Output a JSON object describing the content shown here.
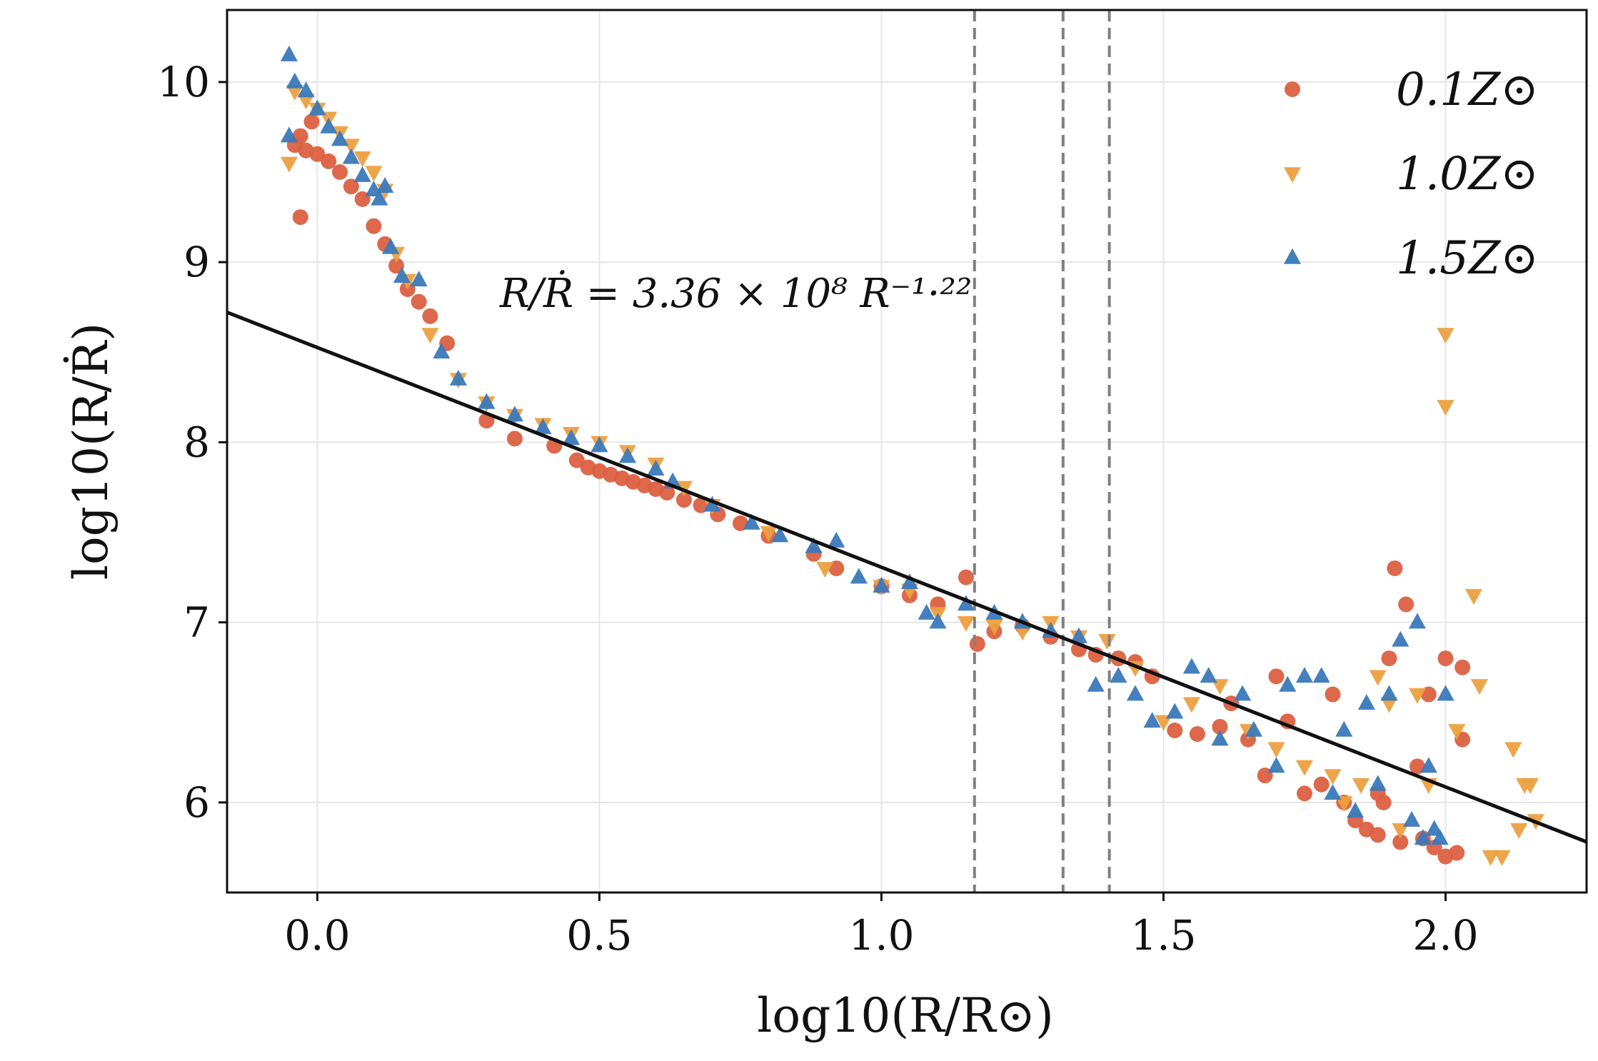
{
  "chart_data": {
    "type": "scatter",
    "title": "",
    "xlabel": "log10(R/R⊙)",
    "ylabel": "log10(R/Ṙ)",
    "xlim": [
      -0.16,
      2.25
    ],
    "ylim": [
      5.5,
      10.4
    ],
    "xticks": [
      "0.0",
      "0.5",
      "1.0",
      "1.5",
      "2.0"
    ],
    "yticks": [
      "6",
      "7",
      "8",
      "9",
      "10"
    ],
    "xtick_values": [
      0.0,
      0.5,
      1.0,
      1.5,
      2.0
    ],
    "ytick_values": [
      6,
      7,
      8,
      9,
      10
    ],
    "grid": true,
    "legend_position": "top-right",
    "annotation": "R/Ṙ = 3.36 × 10⁸ R⁻¹·²²",
    "fit_line": {
      "label": "R/Ṙ = 3.36 × 10^8 R^-1.22",
      "intercept": 8.526,
      "slope": -1.22,
      "color": "#111111"
    },
    "vlines": [
      1.165,
      1.322,
      1.404
    ],
    "series": [
      {
        "name": "0.1Z⊙",
        "marker": "circle",
        "color": "#dc6041",
        "points": [
          [
            -0.03,
            9.25
          ],
          [
            -0.04,
            9.65
          ],
          [
            -0.03,
            9.7
          ],
          [
            -0.02,
            9.62
          ],
          [
            -0.01,
            9.78
          ],
          [
            0.0,
            9.6
          ],
          [
            0.02,
            9.56
          ],
          [
            0.04,
            9.5
          ],
          [
            0.06,
            9.42
          ],
          [
            0.08,
            9.35
          ],
          [
            0.1,
            9.2
          ],
          [
            0.12,
            9.1
          ],
          [
            0.14,
            8.98
          ],
          [
            0.16,
            8.85
          ],
          [
            0.18,
            8.78
          ],
          [
            0.2,
            8.7
          ],
          [
            0.23,
            8.55
          ],
          [
            0.3,
            8.12
          ],
          [
            0.35,
            8.02
          ],
          [
            0.42,
            7.98
          ],
          [
            0.46,
            7.9
          ],
          [
            0.48,
            7.86
          ],
          [
            0.5,
            7.84
          ],
          [
            0.52,
            7.82
          ],
          [
            0.54,
            7.8
          ],
          [
            0.56,
            7.78
          ],
          [
            0.58,
            7.76
          ],
          [
            0.6,
            7.74
          ],
          [
            0.62,
            7.72
          ],
          [
            0.65,
            7.68
          ],
          [
            0.68,
            7.65
          ],
          [
            0.71,
            7.6
          ],
          [
            0.75,
            7.55
          ],
          [
            0.8,
            7.48
          ],
          [
            0.88,
            7.38
          ],
          [
            0.92,
            7.3
          ],
          [
            1.0,
            7.2
          ],
          [
            1.05,
            7.15
          ],
          [
            1.1,
            7.1
          ],
          [
            1.15,
            7.25
          ],
          [
            1.17,
            6.88
          ],
          [
            1.2,
            6.95
          ],
          [
            1.25,
            6.98
          ],
          [
            1.3,
            6.92
          ],
          [
            1.35,
            6.85
          ],
          [
            1.38,
            6.82
          ],
          [
            1.42,
            6.8
          ],
          [
            1.45,
            6.78
          ],
          [
            1.48,
            6.7
          ],
          [
            1.52,
            6.4
          ],
          [
            1.56,
            6.38
          ],
          [
            1.6,
            6.42
          ],
          [
            1.62,
            6.55
          ],
          [
            1.65,
            6.35
          ],
          [
            1.68,
            6.15
          ],
          [
            1.7,
            6.7
          ],
          [
            1.72,
            6.45
          ],
          [
            1.75,
            6.05
          ],
          [
            1.78,
            6.1
          ],
          [
            1.8,
            6.6
          ],
          [
            1.82,
            6.0
          ],
          [
            1.84,
            5.9
          ],
          [
            1.86,
            5.85
          ],
          [
            1.88,
            6.05
          ],
          [
            1.89,
            6.0
          ],
          [
            1.9,
            6.8
          ],
          [
            1.91,
            7.3
          ],
          [
            1.93,
            7.1
          ],
          [
            1.95,
            6.2
          ],
          [
            1.96,
            5.8
          ],
          [
            1.97,
            6.6
          ],
          [
            1.98,
            5.75
          ],
          [
            2.0,
            6.8
          ],
          [
            2.0,
            5.7
          ],
          [
            2.03,
            6.75
          ],
          [
            2.03,
            6.35
          ],
          [
            2.02,
            5.72
          ],
          [
            1.92,
            5.78
          ],
          [
            1.88,
            5.82
          ]
        ]
      },
      {
        "name": "1.0Z⊙",
        "marker": "triangle-down",
        "color": "#eda040",
        "points": [
          [
            -0.05,
            9.55
          ],
          [
            -0.04,
            9.95
          ],
          [
            -0.02,
            9.9
          ],
          [
            0.0,
            9.85
          ],
          [
            0.02,
            9.8
          ],
          [
            0.04,
            9.72
          ],
          [
            0.06,
            9.65
          ],
          [
            0.08,
            9.58
          ],
          [
            0.1,
            9.5
          ],
          [
            0.12,
            9.4
          ],
          [
            0.14,
            9.05
          ],
          [
            0.16,
            8.9
          ],
          [
            0.2,
            8.6
          ],
          [
            0.25,
            8.35
          ],
          [
            0.3,
            8.22
          ],
          [
            0.35,
            8.15
          ],
          [
            0.4,
            8.1
          ],
          [
            0.45,
            8.05
          ],
          [
            0.5,
            8.0
          ],
          [
            0.55,
            7.95
          ],
          [
            0.6,
            7.88
          ],
          [
            0.65,
            7.75
          ],
          [
            0.7,
            7.65
          ],
          [
            0.8,
            7.5
          ],
          [
            0.9,
            7.3
          ],
          [
            1.0,
            7.2
          ],
          [
            1.05,
            7.18
          ],
          [
            1.1,
            7.05
          ],
          [
            1.15,
            7.0
          ],
          [
            1.2,
            6.98
          ],
          [
            1.25,
            6.95
          ],
          [
            1.3,
            7.0
          ],
          [
            1.35,
            6.92
          ],
          [
            1.4,
            6.9
          ],
          [
            1.45,
            6.75
          ],
          [
            1.5,
            6.45
          ],
          [
            1.55,
            6.55
          ],
          [
            1.6,
            6.65
          ],
          [
            1.65,
            6.4
          ],
          [
            1.7,
            6.3
          ],
          [
            1.75,
            6.2
          ],
          [
            1.8,
            6.15
          ],
          [
            1.82,
            6.0
          ],
          [
            1.85,
            6.1
          ],
          [
            1.88,
            6.7
          ],
          [
            1.9,
            6.55
          ],
          [
            1.92,
            5.85
          ],
          [
            1.95,
            6.6
          ],
          [
            1.97,
            6.1
          ],
          [
            2.0,
            8.6
          ],
          [
            2.0,
            8.2
          ],
          [
            2.02,
            6.4
          ],
          [
            2.05,
            7.15
          ],
          [
            2.06,
            6.65
          ],
          [
            2.08,
            5.7
          ],
          [
            2.1,
            5.7
          ],
          [
            2.12,
            6.3
          ],
          [
            2.14,
            6.1
          ],
          [
            2.15,
            6.1
          ],
          [
            2.16,
            5.9
          ],
          [
            2.13,
            5.85
          ]
        ]
      },
      {
        "name": "1.5Z⊙",
        "marker": "triangle-up",
        "color": "#3a79bb",
        "points": [
          [
            -0.05,
            10.15
          ],
          [
            -0.05,
            9.7
          ],
          [
            -0.04,
            10.0
          ],
          [
            -0.02,
            9.95
          ],
          [
            0.0,
            9.85
          ],
          [
            0.02,
            9.75
          ],
          [
            0.04,
            9.68
          ],
          [
            0.06,
            9.58
          ],
          [
            0.08,
            9.48
          ],
          [
            0.1,
            9.4
          ],
          [
            0.11,
            9.35
          ],
          [
            0.12,
            9.42
          ],
          [
            0.13,
            9.08
          ],
          [
            0.15,
            8.92
          ],
          [
            0.18,
            8.9
          ],
          [
            0.22,
            8.5
          ],
          [
            0.25,
            8.35
          ],
          [
            0.3,
            8.22
          ],
          [
            0.35,
            8.15
          ],
          [
            0.4,
            8.08
          ],
          [
            0.45,
            8.02
          ],
          [
            0.5,
            7.98
          ],
          [
            0.55,
            7.92
          ],
          [
            0.6,
            7.85
          ],
          [
            0.63,
            7.78
          ],
          [
            0.7,
            7.65
          ],
          [
            0.77,
            7.55
          ],
          [
            0.82,
            7.48
          ],
          [
            0.88,
            7.42
          ],
          [
            0.92,
            7.45
          ],
          [
            0.96,
            7.25
          ],
          [
            1.0,
            7.2
          ],
          [
            1.05,
            7.22
          ],
          [
            1.08,
            7.05
          ],
          [
            1.1,
            7.0
          ],
          [
            1.15,
            7.1
          ],
          [
            1.2,
            7.05
          ],
          [
            1.25,
            7.0
          ],
          [
            1.3,
            6.95
          ],
          [
            1.35,
            6.92
          ],
          [
            1.38,
            6.65
          ],
          [
            1.42,
            6.7
          ],
          [
            1.45,
            6.6
          ],
          [
            1.48,
            6.45
          ],
          [
            1.52,
            6.5
          ],
          [
            1.55,
            6.75
          ],
          [
            1.58,
            6.7
          ],
          [
            1.6,
            6.35
          ],
          [
            1.64,
            6.6
          ],
          [
            1.66,
            6.4
          ],
          [
            1.7,
            6.2
          ],
          [
            1.72,
            6.65
          ],
          [
            1.75,
            6.7
          ],
          [
            1.78,
            6.7
          ],
          [
            1.8,
            6.05
          ],
          [
            1.82,
            6.4
          ],
          [
            1.84,
            5.95
          ],
          [
            1.86,
            6.55
          ],
          [
            1.88,
            6.1
          ],
          [
            1.9,
            6.6
          ],
          [
            1.92,
            6.9
          ],
          [
            1.94,
            5.9
          ],
          [
            1.95,
            7.0
          ],
          [
            1.97,
            6.2
          ],
          [
            1.98,
            5.85
          ],
          [
            2.0,
            6.6
          ],
          [
            1.96,
            5.8
          ],
          [
            1.99,
            5.8
          ]
        ]
      }
    ]
  }
}
